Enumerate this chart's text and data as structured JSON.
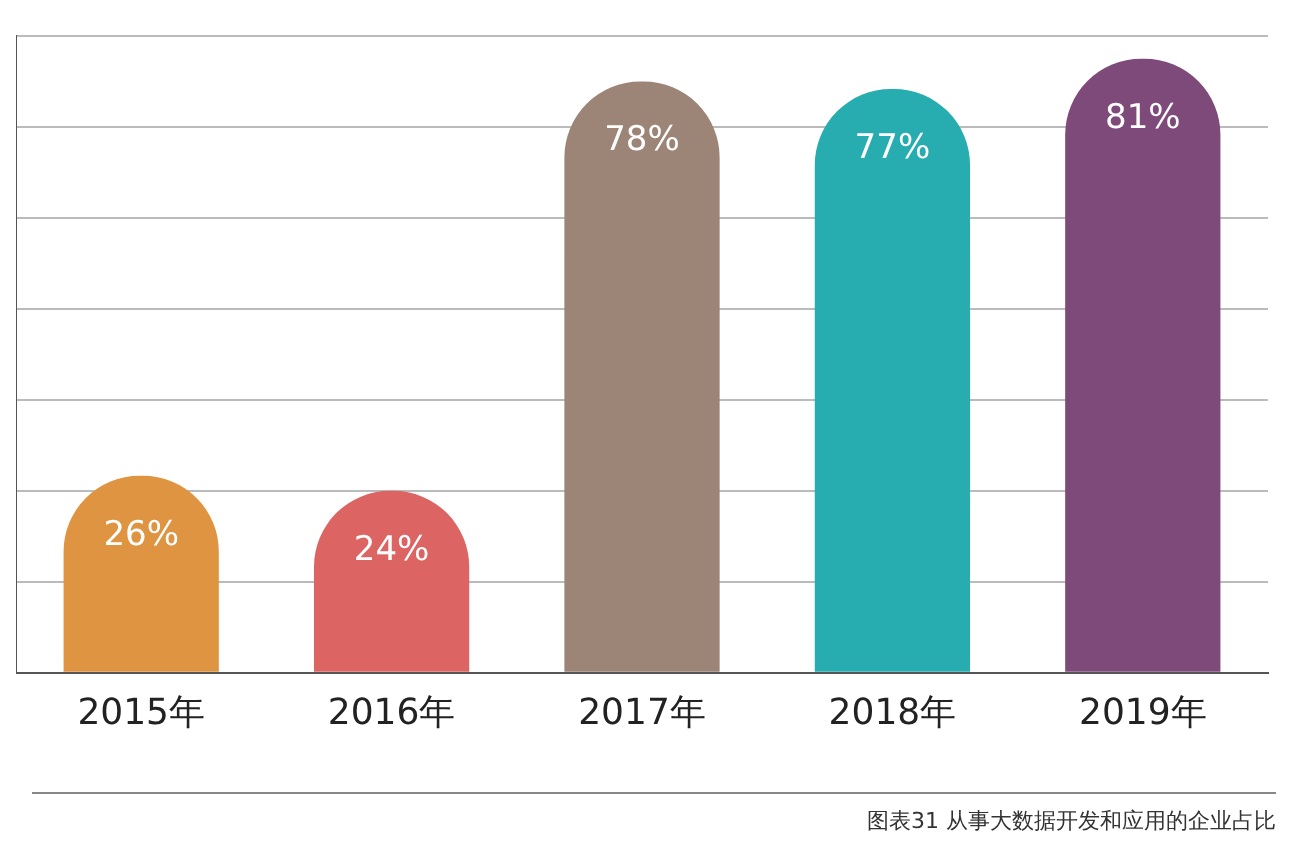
{
  "chart_data": {
    "type": "bar",
    "categories": [
      "2015年",
      "2016年",
      "2017年",
      "2018年",
      "2019年"
    ],
    "values": [
      26,
      24,
      78,
      77,
      81
    ],
    "colors": [
      "#de9440",
      "#dc6463",
      "#9c8477",
      "#27adb0",
      "#7e4a7a"
    ],
    "value_labels": [
      "26%",
      "24%",
      "78%",
      "77%",
      "81%"
    ],
    "ylim": [
      0,
      84
    ],
    "yticks": [
      {
        "value": 0,
        "label": null
      },
      {
        "value": 12,
        "label": null
      },
      {
        "value": 24,
        "label": null
      },
      {
        "value": 36,
        "label": null
      },
      {
        "value": 48,
        "label": null
      },
      {
        "value": 60,
        "label": null
      },
      {
        "value": 72,
        "label": null
      },
      {
        "value": 84,
        "label": null
      }
    ],
    "grid": "y",
    "tick_labels": "x",
    "legend": false,
    "annotations": [
      "图表31 从事大数据开发和应用的企业占比"
    ]
  }
}
